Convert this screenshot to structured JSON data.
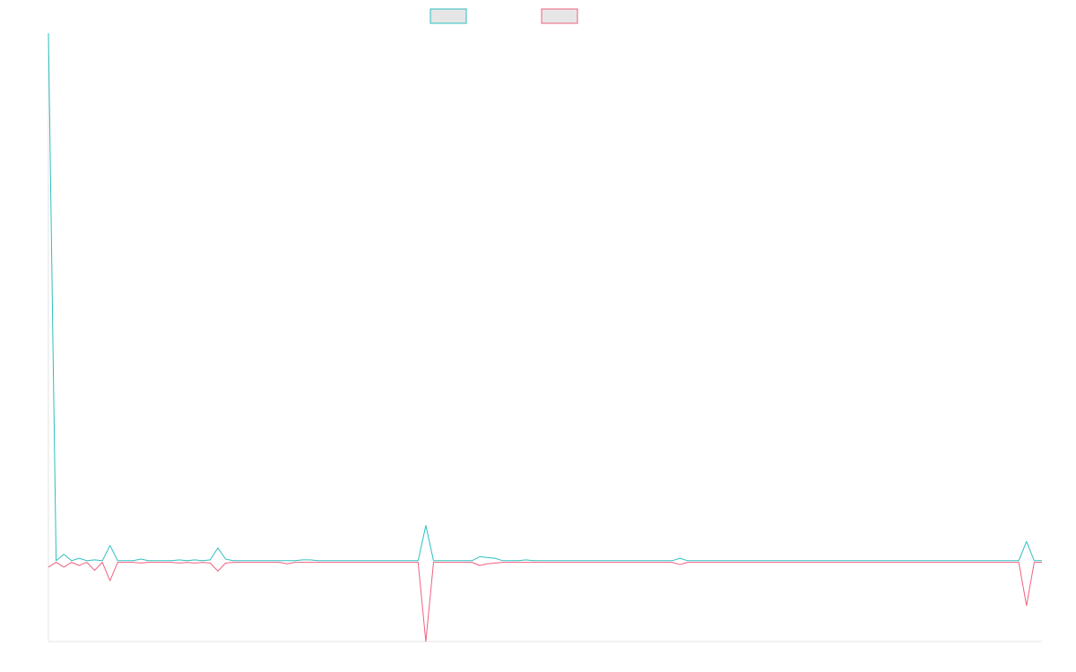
{
  "chart_data": {
    "type": "line",
    "title": "",
    "xlabel": "",
    "ylabel": "",
    "grid": false,
    "legend_position": "top-center",
    "x": [
      0,
      1,
      2,
      3,
      4,
      5,
      6,
      7,
      8,
      9,
      10,
      11,
      12,
      13,
      14,
      15,
      16,
      17,
      18,
      19,
      20,
      21,
      22,
      23,
      24,
      25,
      26,
      27,
      28,
      29,
      30,
      31,
      32,
      33,
      34,
      35,
      36,
      37,
      38,
      39,
      40,
      41,
      42,
      43,
      44,
      45,
      46,
      47,
      48,
      49,
      50,
      51,
      52,
      53,
      54,
      55,
      56,
      57,
      58,
      59,
      60,
      61,
      62,
      63,
      64,
      65,
      66,
      67,
      68,
      69,
      70,
      71,
      72,
      73,
      74,
      75,
      76,
      77,
      78,
      79,
      80,
      81,
      82,
      83,
      84,
      85,
      86,
      87,
      88,
      89,
      90,
      91,
      92,
      93,
      94,
      95,
      96,
      97,
      98,
      99,
      100,
      101,
      102,
      103,
      104,
      105,
      106,
      107,
      108,
      109,
      110,
      111,
      112,
      113,
      114,
      115,
      116,
      117,
      118,
      119,
      120,
      121,
      122,
      123,
      124,
      125,
      126,
      127,
      128,
      129
    ],
    "xlim": [
      0,
      129
    ],
    "ylim": [
      -100,
      660
    ],
    "series": [
      {
        "color": "#2ebfbf",
        "values": [
          660,
          1,
          9,
          1,
          4,
          1,
          2,
          1,
          20,
          1,
          1,
          1,
          3,
          1,
          1,
          1,
          1,
          2,
          1,
          2,
          1,
          2,
          17,
          3,
          1,
          1,
          1,
          1,
          1,
          1,
          1,
          1,
          1,
          2,
          2,
          1,
          1,
          1,
          1,
          1,
          1,
          1,
          1,
          1,
          1,
          1,
          1,
          1,
          1,
          45,
          1,
          1,
          1,
          1,
          1,
          1,
          6,
          5,
          4,
          1,
          1,
          1,
          2,
          1,
          1,
          1,
          1,
          1,
          1,
          1,
          1,
          1,
          1,
          1,
          1,
          1,
          1,
          1,
          1,
          1,
          1,
          1,
          4,
          1,
          1,
          1,
          1,
          1,
          1,
          1,
          1,
          1,
          1,
          1,
          1,
          1,
          1,
          1,
          1,
          1,
          1,
          1,
          1,
          1,
          1,
          1,
          1,
          1,
          1,
          1,
          1,
          1,
          1,
          1,
          1,
          1,
          1,
          1,
          1,
          1,
          1,
          1,
          1,
          1,
          1,
          1,
          1,
          25,
          1,
          1
        ]
      },
      {
        "color": "#f06080",
        "values": [
          -7,
          -1,
          -7,
          -1,
          -5,
          -1,
          -11,
          -1,
          -24,
          -1,
          -1,
          -1,
          -2,
          -1,
          -1,
          -1,
          -1,
          -2,
          -1,
          -2,
          -1,
          -2,
          -12,
          -2,
          -1,
          -1,
          -1,
          -1,
          -1,
          -1,
          -1,
          -3,
          -1,
          -1,
          -1,
          -1,
          -1,
          -1,
          -1,
          -1,
          -1,
          -1,
          -1,
          -1,
          -1,
          -1,
          -1,
          -1,
          -1,
          -100,
          -1,
          -1,
          -1,
          -1,
          -1,
          -1,
          -5,
          -3,
          -2,
          -1,
          -1,
          -1,
          -1,
          -1,
          -1,
          -1,
          -1,
          -1,
          -1,
          -1,
          -1,
          -1,
          -1,
          -1,
          -1,
          -1,
          -1,
          -1,
          -1,
          -1,
          -1,
          -1,
          -4,
          -1,
          -1,
          -1,
          -1,
          -1,
          -1,
          -1,
          -1,
          -1,
          -1,
          -1,
          -1,
          -1,
          -1,
          -1,
          -1,
          -1,
          -1,
          -1,
          -1,
          -1,
          -1,
          -1,
          -1,
          -1,
          -1,
          -1,
          -1,
          -1,
          -1,
          -1,
          -1,
          -1,
          -1,
          -1,
          -1,
          -1,
          -1,
          -1,
          -1,
          -1,
          -1,
          -1,
          -1,
          -55,
          -1,
          -1
        ]
      }
    ]
  }
}
